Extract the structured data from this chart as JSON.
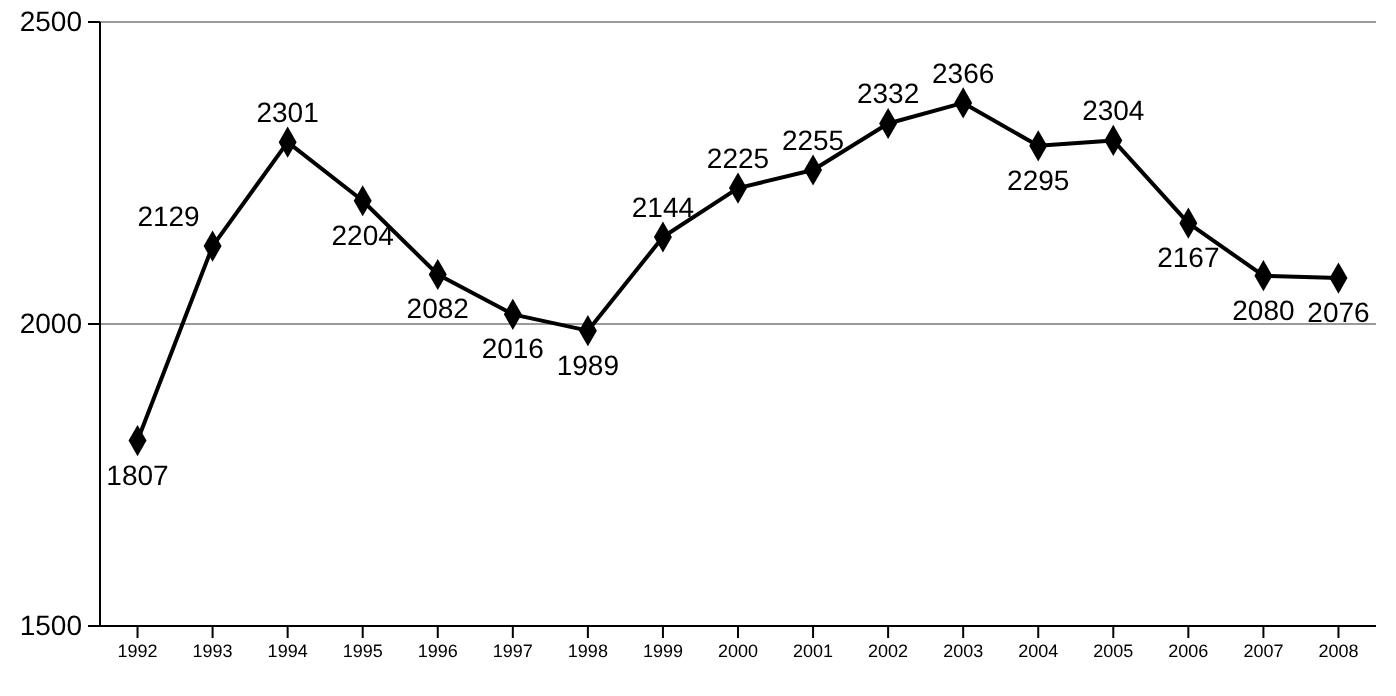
{
  "chart_data": {
    "type": "line",
    "categories": [
      "1992",
      "1993",
      "1994",
      "1995",
      "1996",
      "1997",
      "1998",
      "1999",
      "2000",
      "2001",
      "2002",
      "2003",
      "2004",
      "2005",
      "2006",
      "2007",
      "2008"
    ],
    "series": [
      {
        "color": "#000000",
        "values": [
          1807,
          2129,
          2301,
          2204,
          2082,
          2016,
          1989,
          2144,
          2225,
          2255,
          2332,
          2366,
          2295,
          2304,
          2167,
          2080,
          2076
        ]
      }
    ],
    "ylim": [
      1500,
      2500
    ],
    "yticks": [
      1500,
      2000,
      2500
    ],
    "grid": "y",
    "marker": "diamond",
    "line_style": "solid",
    "data_labels": true
  }
}
